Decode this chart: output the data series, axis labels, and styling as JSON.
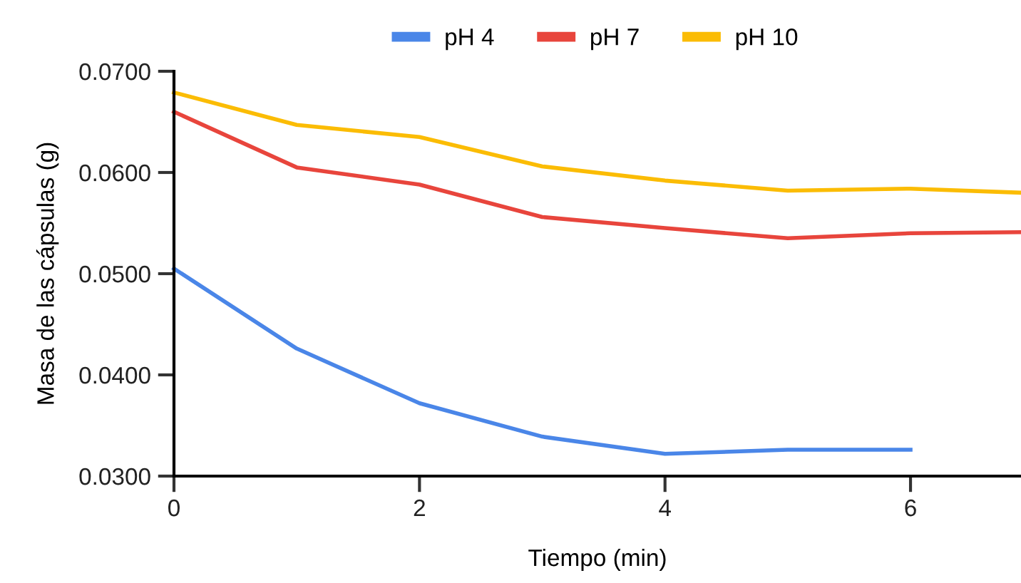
{
  "chart_data": {
    "type": "line",
    "xlabel": "Tiempo (min)",
    "ylabel": "Masa de las cápsulas (g)",
    "xlim": [
      0,
      6.9
    ],
    "xticks": [
      0,
      2,
      4,
      6
    ],
    "ylim": [
      0.03,
      0.07
    ],
    "yticks": [
      {
        "value": 0.03,
        "label": "0.0300"
      },
      {
        "value": 0.04,
        "label": "0.0400"
      },
      {
        "value": 0.05,
        "label": "0.0500"
      },
      {
        "value": 0.06,
        "label": "0.0600"
      },
      {
        "value": 0.07,
        "label": "0.0700"
      }
    ],
    "grid": false,
    "legend": "top",
    "marker": "none",
    "line_style": "solid",
    "series": [
      {
        "name": "pH 4",
        "color": "#4a86e8",
        "x": [
          0,
          1,
          2,
          3,
          4,
          5,
          6
        ],
        "values": [
          0.0505,
          0.0426,
          0.0372,
          0.0339,
          0.0322,
          0.0326,
          0.0326
        ]
      },
      {
        "name": "pH 7",
        "color": "#e8453c",
        "x": [
          0,
          1,
          2,
          3,
          4,
          5,
          6,
          6.9
        ],
        "values": [
          0.066,
          0.0605,
          0.0588,
          0.0556,
          0.0545,
          0.0535,
          0.054,
          0.0541
        ]
      },
      {
        "name": "pH 10",
        "color": "#fbbc04",
        "x": [
          0,
          1,
          2,
          3,
          4,
          5,
          6,
          6.9
        ],
        "values": [
          0.0679,
          0.0647,
          0.0635,
          0.0606,
          0.0592,
          0.0582,
          0.0584,
          0.058
        ]
      }
    ]
  }
}
